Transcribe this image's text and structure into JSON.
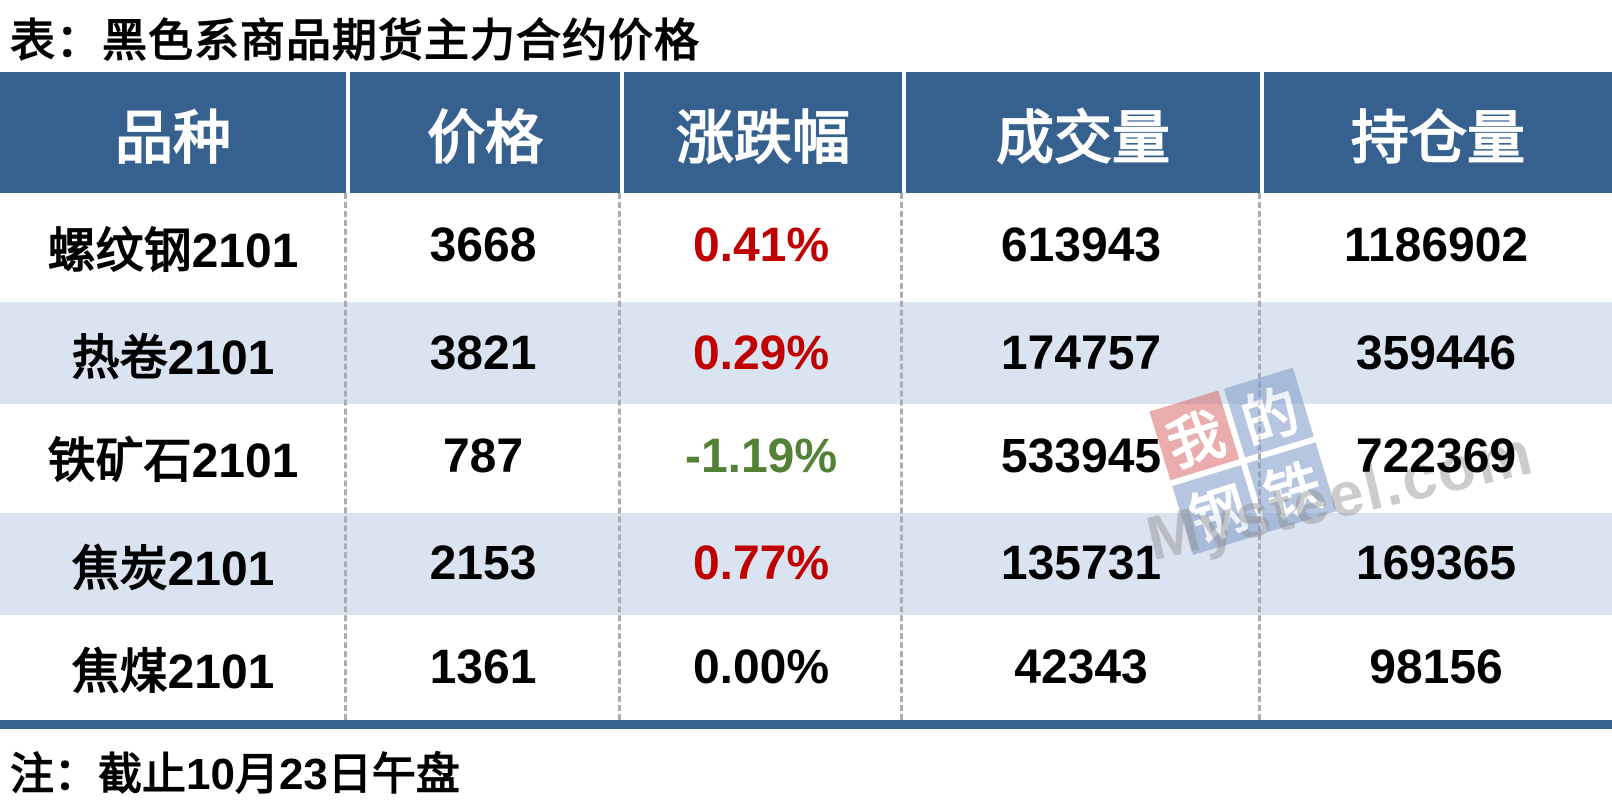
{
  "title": "表：黑色系商品期货主力合约价格",
  "note": "注：截止10月23日午盘",
  "colors": {
    "header_bg": "#36618F",
    "alt_row_bg": "#DAE3F0",
    "up": "#C00000",
    "down": "#538135",
    "flat": "#000000"
  },
  "table": {
    "columns": [
      "品种",
      "价格",
      "涨跌幅",
      "成交量",
      "持仓量"
    ],
    "rows": [
      {
        "name": "螺纹钢2101",
        "price": "3668",
        "change": "0.41%",
        "change_color": "#C00000",
        "volume": "613943",
        "open_interest": "1186902"
      },
      {
        "name": "热卷2101",
        "price": "3821",
        "change": "0.29%",
        "change_color": "#C00000",
        "volume": "174757",
        "open_interest": "359446"
      },
      {
        "name": "铁矿石2101",
        "price": "787",
        "change": "-1.19%",
        "change_color": "#538135",
        "volume": "533945",
        "open_interest": "722369"
      },
      {
        "name": "焦炭2101",
        "price": "2153",
        "change": "0.77%",
        "change_color": "#C00000",
        "volume": "135731",
        "open_interest": "169365"
      },
      {
        "name": "焦煤2101",
        "price": "1361",
        "change": "0.00%",
        "change_color": "#000000",
        "volume": "42343",
        "open_interest": "98156"
      }
    ]
  },
  "watermark": {
    "chars": [
      "我",
      "的",
      "钢",
      "铁"
    ],
    "text": "Mysteel.com"
  },
  "chart_data": {
    "type": "table",
    "title": "表：黑色系商品期货主力合约价格",
    "columns": [
      "品种",
      "价格",
      "涨跌幅",
      "成交量",
      "持仓量"
    ],
    "rows": [
      [
        "螺纹钢2101",
        3668,
        "0.41%",
        613943,
        1186902
      ],
      [
        "热卷2101",
        3821,
        "0.29%",
        174757,
        359446
      ],
      [
        "铁矿石2101",
        787,
        "-1.19%",
        533945,
        722369
      ],
      [
        "焦炭2101",
        2153,
        "0.77%",
        135731,
        169365
      ],
      [
        "焦煤2101",
        1361,
        "0.00%",
        42343,
        98156
      ]
    ],
    "note": "注：截止10月23日午盘"
  }
}
